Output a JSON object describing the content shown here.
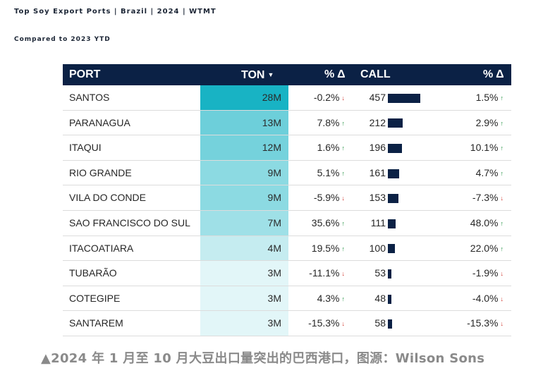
{
  "title": "Top Soy Export Ports | Brazil | 2024 | WTMT",
  "subtitle": "Compared to 2023 YTD",
  "caption": "▲2024 年 1 月至 10 月大豆出口量突出的巴西港口，图源：Wilson Sons",
  "chart_data": {
    "type": "table",
    "columns": [
      "PORT",
      "TON",
      "% Δ",
      "CALL",
      "% Δ"
    ],
    "sort_indicator": "▼",
    "colors": {
      "header_bg": "#0b2145",
      "ton_high": "#18b3c4",
      "ton_low": "#e2f6f8",
      "bar": "#0b2145",
      "up_arrow": "#1e8f3e",
      "down_arrow": "#d0342c"
    },
    "rows": [
      {
        "port": "SANTOS",
        "ton": "28M",
        "ton_value": 28,
        "ton_change": "-0.2%",
        "ton_dir": "down",
        "call": "457",
        "call_value": 457,
        "call_change": "1.5%",
        "call_dir": "up"
      },
      {
        "port": "PARANAGUA",
        "ton": "13M",
        "ton_value": 13,
        "ton_change": "7.8%",
        "ton_dir": "up",
        "call": "212",
        "call_value": 212,
        "call_change": "2.9%",
        "call_dir": "up"
      },
      {
        "port": "ITAQUI",
        "ton": "12M",
        "ton_value": 12,
        "ton_change": "1.6%",
        "ton_dir": "up",
        "call": "196",
        "call_value": 196,
        "call_change": "10.1%",
        "call_dir": "up"
      },
      {
        "port": "RIO GRANDE",
        "ton": "9M",
        "ton_value": 9,
        "ton_change": "5.1%",
        "ton_dir": "up",
        "call": "161",
        "call_value": 161,
        "call_change": "4.7%",
        "call_dir": "up"
      },
      {
        "port": "VILA DO CONDE",
        "ton": "9M",
        "ton_value": 9,
        "ton_change": "-5.9%",
        "ton_dir": "down",
        "call": "153",
        "call_value": 153,
        "call_change": "-7.3%",
        "call_dir": "down"
      },
      {
        "port": "SAO FRANCISCO DO SUL",
        "ton": "7M",
        "ton_value": 7,
        "ton_change": "35.6%",
        "ton_dir": "up",
        "call": "111",
        "call_value": 111,
        "call_change": "48.0%",
        "call_dir": "up"
      },
      {
        "port": "ITACOATIARA",
        "ton": "4M",
        "ton_value": 4,
        "ton_change": "19.5%",
        "ton_dir": "up",
        "call": "100",
        "call_value": 100,
        "call_change": "22.0%",
        "call_dir": "up"
      },
      {
        "port": "TUBARÃO",
        "ton": "3M",
        "ton_value": 3,
        "ton_change": "-11.1%",
        "ton_dir": "down",
        "call": "53",
        "call_value": 53,
        "call_change": "-1.9%",
        "call_dir": "down"
      },
      {
        "port": "COTEGIPE",
        "ton": "3M",
        "ton_value": 3,
        "ton_change": "4.3%",
        "ton_dir": "up",
        "call": "48",
        "call_value": 48,
        "call_change": "-4.0%",
        "call_dir": "down"
      },
      {
        "port": "SANTAREM",
        "ton": "3M",
        "ton_value": 3,
        "ton_change": "-15.3%",
        "ton_dir": "down",
        "call": "58",
        "call_value": 58,
        "call_change": "-15.3%",
        "call_dir": "down"
      }
    ]
  }
}
